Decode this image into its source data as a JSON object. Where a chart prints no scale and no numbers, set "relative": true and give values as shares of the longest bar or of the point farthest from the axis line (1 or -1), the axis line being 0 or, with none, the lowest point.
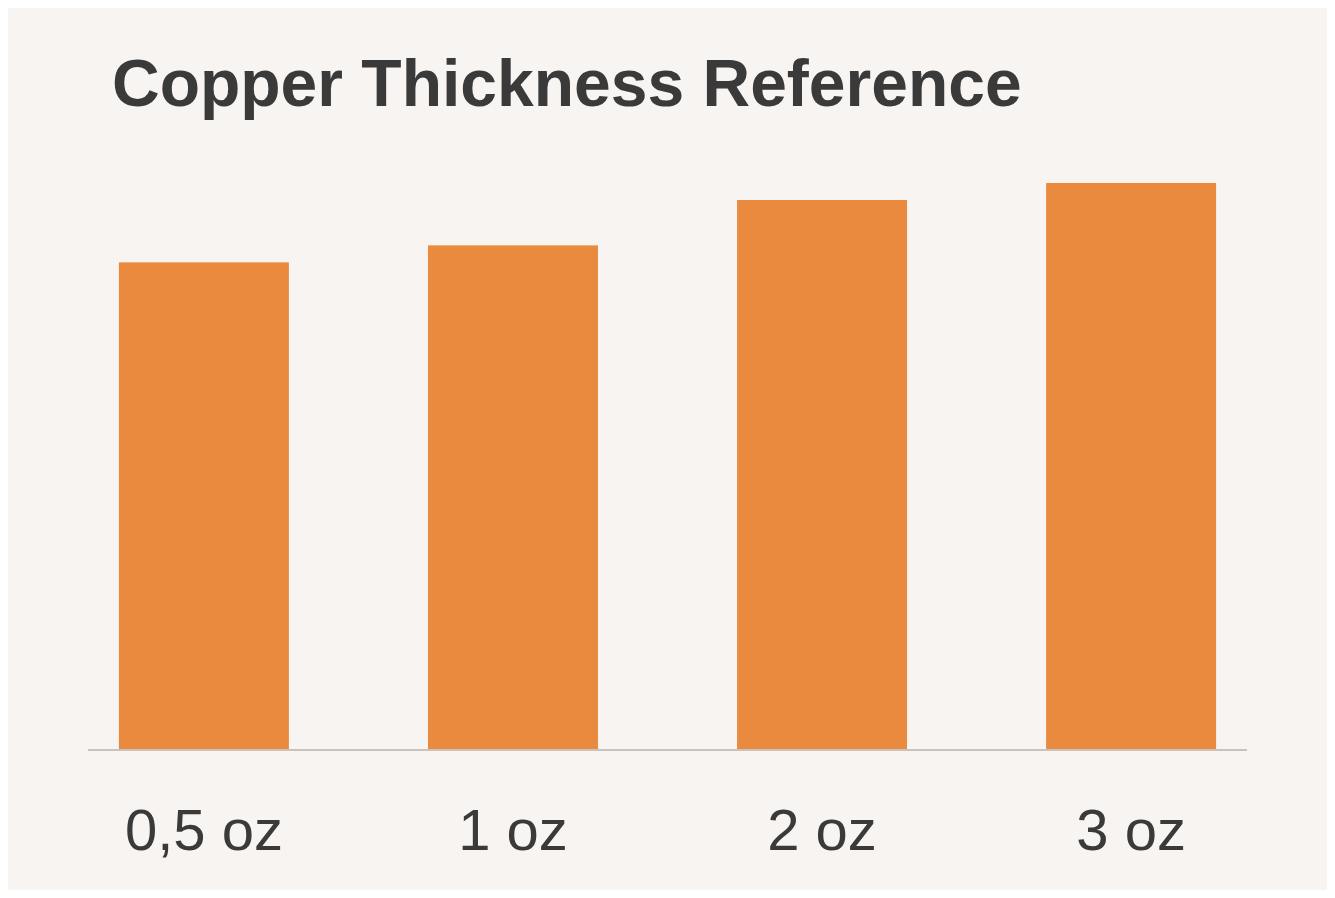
{
  "chart_data": {
    "type": "bar",
    "title": "Copper Thickness Reference",
    "categories": [
      "0,5 oz",
      "1 oz",
      "2 oz",
      "3 oz"
    ],
    "values": [
      0.86,
      0.89,
      0.97,
      1
    ],
    "color": "#e98a3f",
    "relative": true
  }
}
